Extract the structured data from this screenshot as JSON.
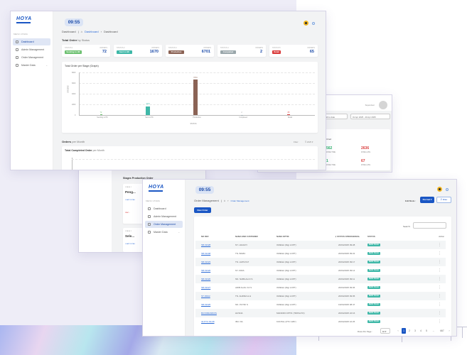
{
  "dashboard": {
    "logo": "HOYA",
    "menu_label": "MENU UTAMA",
    "menu": [
      {
        "label": "Dashboard",
        "active": true,
        "icon": "dashboard-icon"
      },
      {
        "label": "Admin Management",
        "icon": "user-icon"
      },
      {
        "label": "Order Management",
        "icon": "cart-icon"
      },
      {
        "label": "Master Data",
        "icon": "database-icon",
        "chevron": true
      }
    ],
    "clock": "09:55",
    "breadcrumb": {
      "title": "Dashboard",
      "sep": "|",
      "items": [
        "Dashboard",
        "Dashboard"
      ]
    },
    "status_section": {
      "title_bold": "Total Order",
      "title_rest": " by Status"
    },
    "stats": [
      {
        "label": "STATUS 1",
        "badge": "Sending to HK",
        "color": "#6cc070",
        "count_label": "ORDERS",
        "value": "72"
      },
      {
        "label": "STATUS 2",
        "badge": "Sent to HK",
        "color": "#3fb8a8",
        "count_label": "ORDERS",
        "value": "1670"
      },
      {
        "label": "STATUS 3",
        "badge": "Production",
        "color": "#8b6355",
        "count_label": "ORDERS",
        "value": "6701"
      },
      {
        "label": "STATUS 4",
        "badge": "Completed",
        "color": "#9aa7ab",
        "count_label": "ORDERS",
        "value": "2"
      },
      {
        "label": "STATUS 5",
        "badge": "Retail",
        "color": "#d93a3a",
        "count_label": "ORDERS",
        "value": "65"
      }
    ],
    "month_section": {
      "title_bold": "Orders",
      "title_rest": " per Month",
      "filter": "Filter:",
      "year": "2025"
    },
    "completed_chart_title_bold": "Total Completed Order",
    "completed_chart_title_rest": " per Month"
  },
  "chart_data": {
    "type": "bar",
    "title": "Total Order per Stage (Graph)",
    "xlabel": "STATUS",
    "ylabel": "ORDERS",
    "categories": [
      "Sending to HK",
      "Sent to HK",
      "Production",
      "Completed",
      "Retail"
    ],
    "values": [
      72,
      1670,
      6701,
      2,
      65
    ],
    "colors": [
      "#6cc070",
      "#3fb8a8",
      "#8b6355",
      "#9aa7ab",
      "#d93a3a"
    ],
    "yticks": [
      "8000",
      "6000",
      "4000",
      "2000",
      "0"
    ],
    "ylim": [
      0,
      8000
    ],
    "grid": true
  },
  "middle_window": {
    "user": "Supervisor",
    "range_select": "Month to date",
    "date_range": "01 Apr 2025 - 20 Apr 2025",
    "section": "Chart",
    "values": [
      {
        "value": "562",
        "label": "ZONE TIME",
        "color": "#2db36b"
      },
      {
        "value": "2636",
        "label": "ZONE LATE",
        "color": "#d93a3a"
      },
      {
        "value": "1",
        "label": "ZONE TIME",
        "color": "#2db36b"
      },
      {
        "value": "67",
        "label": "ZONE LATE",
        "color": "#d93a3a"
      }
    ]
  },
  "back_window": {
    "section_title": "Stages Production Order",
    "cards": [
      {
        "tag": "STAGE 1",
        "title": "Peng...",
        "link": "LIHAT DETAIL",
        "warn": "WAIT..."
      },
      {
        "tag": "STAGE 2",
        "title": "Sele...",
        "link": "LIHAT DETAIL"
      }
    ]
  },
  "orders": {
    "logo": "HOYA",
    "menu_label": "MENU UTAMA",
    "menu": [
      {
        "label": "Dashboard",
        "icon": "dashboard-icon"
      },
      {
        "label": "Admin Management",
        "icon": "user-icon"
      },
      {
        "label": "Order Management",
        "active": true,
        "icon": "cart-icon"
      },
      {
        "label": "Master Data",
        "icon": "database-icon",
        "chevron": true
      }
    ],
    "clock": "09:55",
    "breadcrumb": {
      "title": "Order Management",
      "sep": "|",
      "items": [
        "Order Management"
      ]
    },
    "edit_mode_label": "Edit Mode :",
    "edit_mode_value": "Normal ▾",
    "filter_label": "Filter",
    "new_order_label": "New Order",
    "search_label": "Search:",
    "search_value": "",
    "columns": [
      "NO REF",
      "NAMA END CUSTOMER",
      "NAMA OPTIK",
      "⇣ STATUS OPERASIONAL",
      "STATUS",
      "Action"
    ],
    "rows": [
      {
        "ref": "SB.19328",
        "customer": "NY. HILDAYI",
        "optik": "OMEGA (Digi LOPT)",
        "time": "20/04/2025 09:28",
        "status": "SENT TO HK"
      },
      {
        "ref": "SB.19448",
        "customer": "TN. BAMU",
        "optik": "OMEGA (Digi LOPT)",
        "time": "20/04/2025 09:22",
        "status": "SENT TO HK"
      },
      {
        "ref": "SB.19323",
        "customer": "TN. HATIUS P",
        "optik": "OMEGA (Digi LOPT)",
        "time": "20/04/2025 09:17",
        "status": "SENT TO HK"
      },
      {
        "ref": "SB.19326",
        "customer": "NY. IDRA",
        "optik": "OMEGA (Digi LOPT)",
        "time": "20/04/2025 09:14",
        "status": "SENT TO HK"
      },
      {
        "ref": "SB.19320",
        "customer": "NN. NABILAH Z.S",
        "optik": "OMEGA (Digi LOPT)",
        "time": "20/04/2025 09:11",
        "status": "SENT TO HK"
      },
      {
        "ref": "SB.19327",
        "customer": "ADIB ALZA V.Z.S",
        "optik": "OMEGA (Digi LOPT)",
        "time": "20/04/2025 09:06",
        "status": "SENT TO HK"
      },
      {
        "ref": "ST.16622",
        "customer": "TN. AHRMA H.H",
        "optik": "OMEGA (Digi LOPT)",
        "time": "20/04/2025 09:05",
        "status": "SENT TO HK"
      },
      {
        "ref": "SB.19325",
        "customer": "NN. PUTRI S",
        "optik": "OMEGA (Digi LOPT)",
        "time": "19/04/2025 08:47",
        "status": "SENT TO HK"
      },
      {
        "ref": "BCV9662026XS",
        "customer": "HUSNA",
        "optik": "MANDIRI OPTIK (TRIPALTO)",
        "time": "20/04/2025 22:16",
        "status": "SENT TO HK"
      },
      {
        "ref": "34.PTC.5/L08",
        "customer": "IBU VIA",
        "optik": "KONTAL (PTC GBY)",
        "time": "20/04/2025 16:25",
        "status": "SENT TO HK"
      }
    ],
    "rows_per_page_label": "Rows Per Page :",
    "rows_per_page": "10 ▾",
    "pages": [
      "‹",
      "1",
      "2",
      "3",
      "4",
      "5",
      "...",
      "667",
      "›"
    ],
    "current_page": "1"
  }
}
